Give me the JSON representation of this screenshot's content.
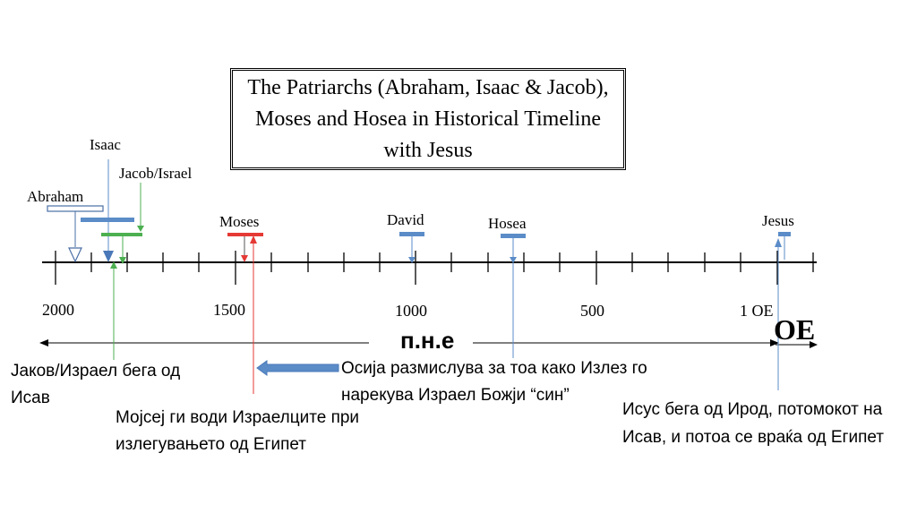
{
  "title": "The Patriarchs (Abraham, Isaac & Jacob), Moses and Hosea in Historical Timeline with Jesus",
  "figures": [
    {
      "name": "Abraham",
      "color": "#ffffff",
      "stroke": "#4a6fa5"
    },
    {
      "name": "Isaac",
      "color": "#5b8cc8"
    },
    {
      "name": "Jacob/Israel",
      "color": "#4caf50"
    },
    {
      "name": "Moses",
      "color": "#e53935"
    },
    {
      "name": "David",
      "color": "#5b8cc8"
    },
    {
      "name": "Hosea",
      "color": "#5b8cc8"
    },
    {
      "name": "Jesus",
      "color": "#5b8cc8"
    }
  ],
  "axis": {
    "ticks": [
      "2000",
      "1500",
      "1000",
      "500",
      "1 OE"
    ],
    "bce_label": "п.н.е",
    "ce_label": "OE"
  },
  "notes": {
    "jacob": "Јаков/Израел бега од Исав",
    "moses": "Мојсеј ги води Израелците при излегувањето од Египет",
    "hosea": "Осија размислува за тоа како Излез го нарекува Израел Божји “син”",
    "jesus": "Исус бега од Ирод, потомокот на Исав, и потоа се враќа од Египет"
  }
}
